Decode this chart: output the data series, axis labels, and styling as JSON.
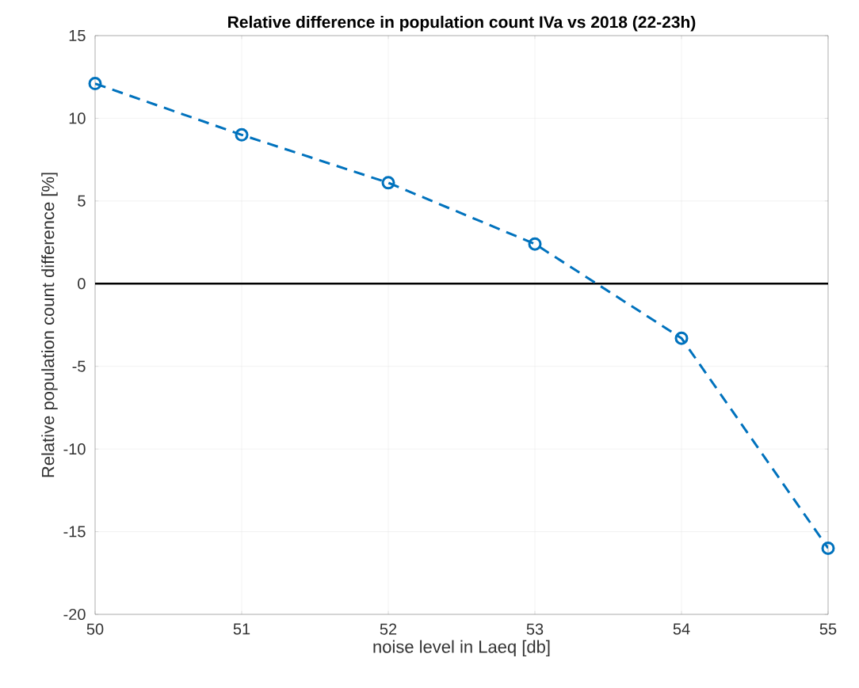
{
  "chart_data": {
    "type": "line",
    "title": "Relative difference in population count IVa vs 2018 (22-23h)",
    "xlabel": "noise level in Laeq [db]",
    "ylabel": "Relative population count difference [%]",
    "x": [
      50,
      51,
      52,
      53,
      54,
      55
    ],
    "series": [
      {
        "color": "#0072bd",
        "values": [
          12.1,
          9.0,
          6.1,
          2.4,
          -3.3,
          -16.0
        ]
      }
    ],
    "xlim": [
      50,
      55
    ],
    "ylim": [
      -20,
      15
    ],
    "xticks": [
      50,
      51,
      52,
      53,
      54,
      55
    ],
    "yticks": [
      -20,
      -15,
      -10,
      -5,
      0,
      5,
      10,
      15
    ],
    "ref_lines": [
      {
        "axis": "y",
        "value": 0,
        "color": "#000000"
      }
    ],
    "grid": true,
    "marker": "circle",
    "line_style": "dashed"
  }
}
